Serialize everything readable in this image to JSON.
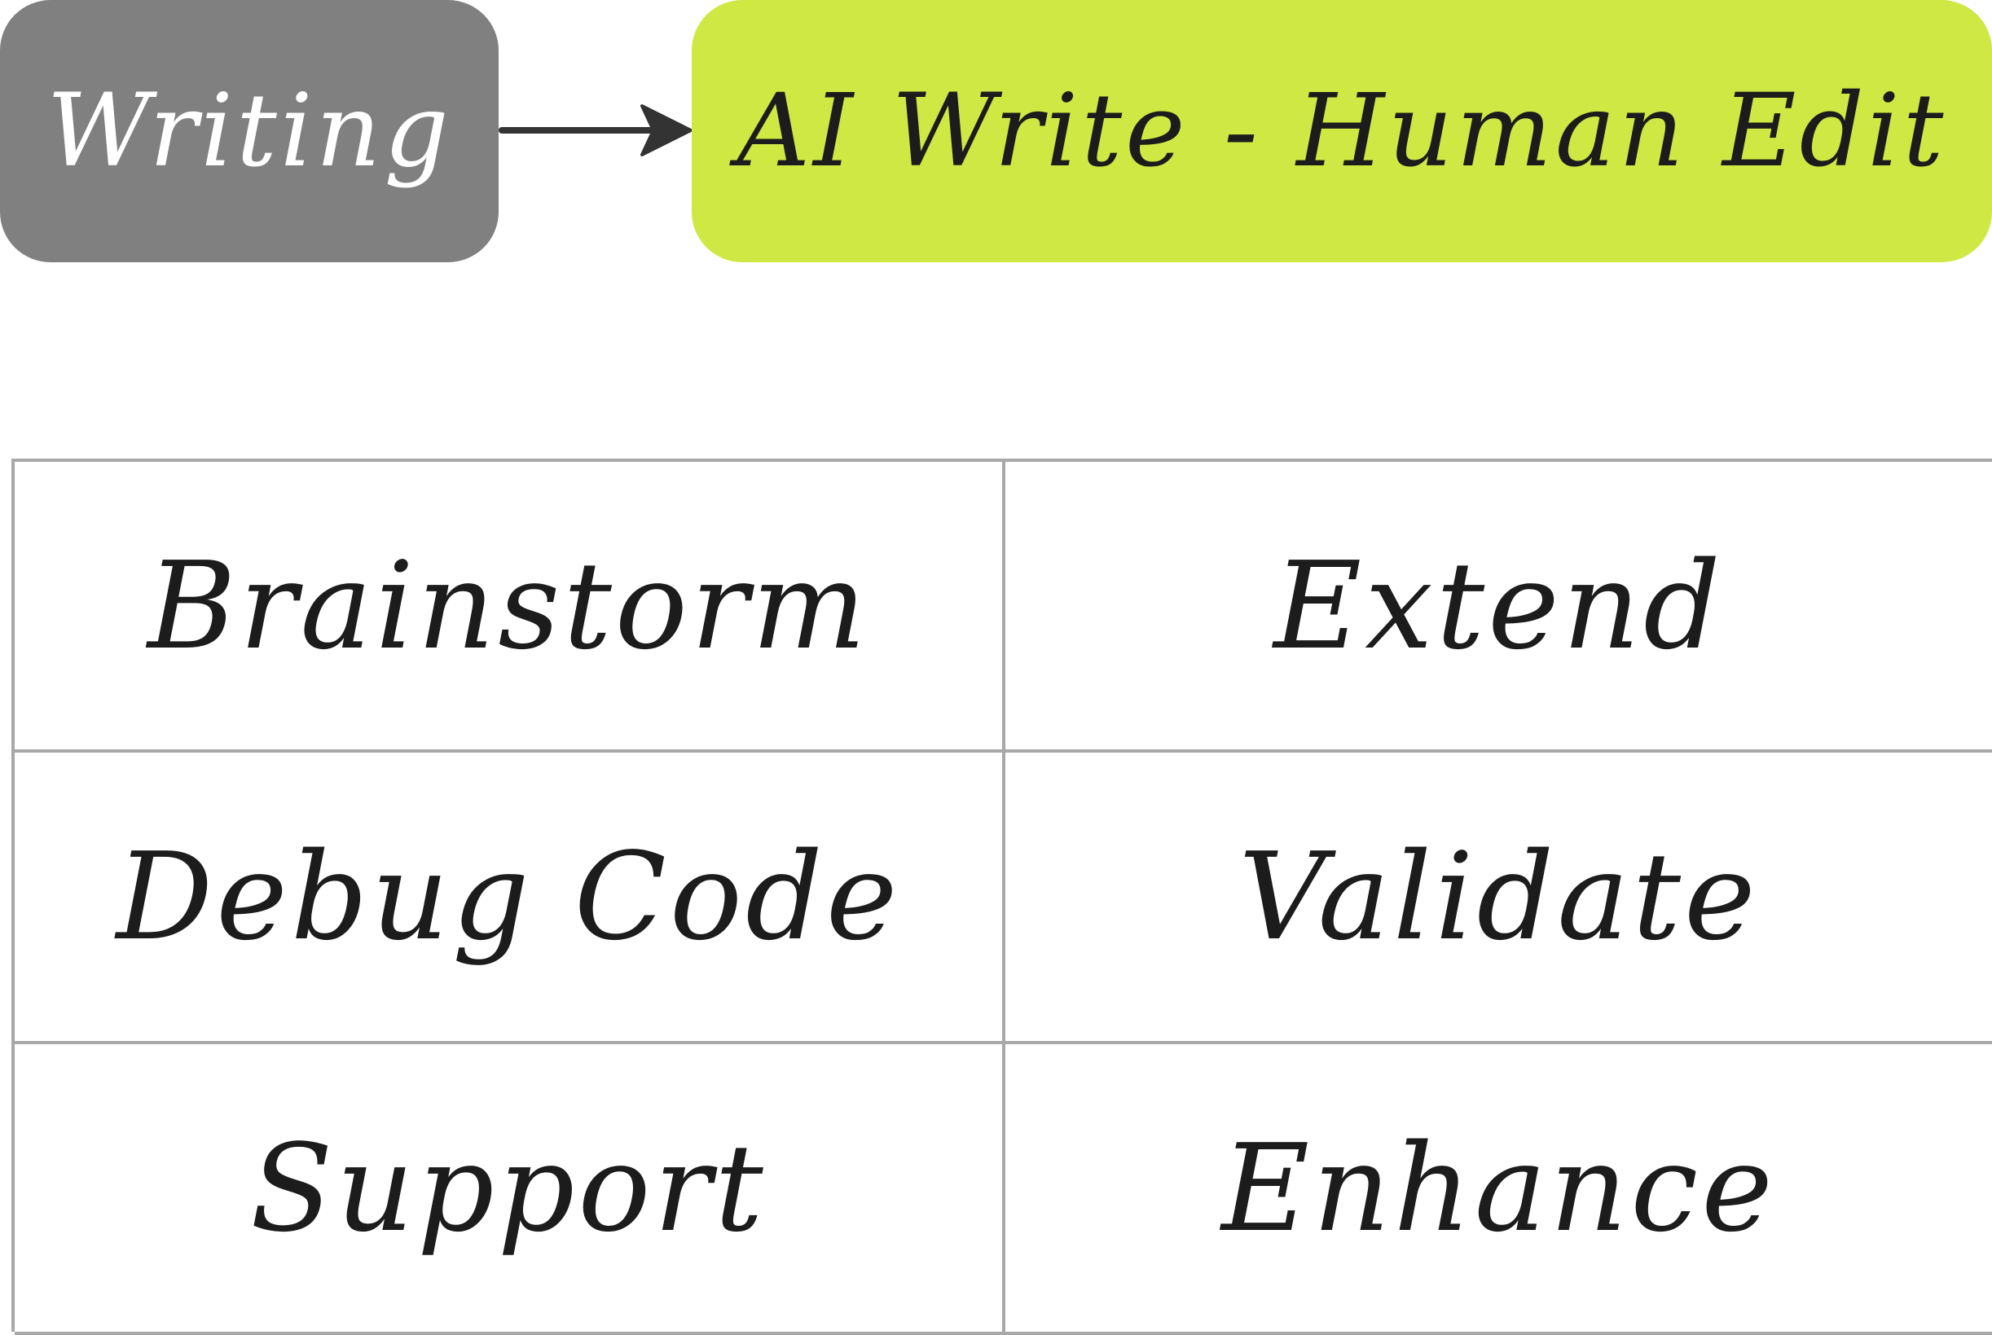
{
  "flow": {
    "source_label": "Writing",
    "target_label": "AI Write - Human Edit",
    "source_color": "#808080",
    "target_color": "#cfe843",
    "arrow_color": "#333333"
  },
  "grid": {
    "cells": [
      "Brainstorm",
      "Extend",
      "Debug Code",
      "Validate",
      "Support",
      "Enhance"
    ],
    "border_color": "#a8a8a8"
  }
}
